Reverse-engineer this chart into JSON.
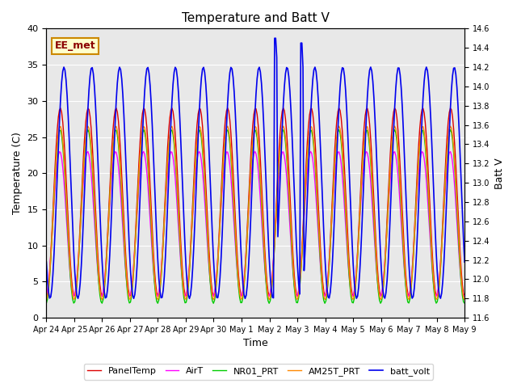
{
  "title": "Temperature and Batt V",
  "xlabel": "Time",
  "ylabel_left": "Temperature (C)",
  "ylabel_right": "Batt V",
  "annotation": "EE_met",
  "ylim_left": [
    0,
    40
  ],
  "ylim_right": [
    11.6,
    14.6
  ],
  "background_color": "#ffffff",
  "plot_bg_color": "#e8e8e8",
  "legend": [
    "PanelTemp",
    "AirT",
    "NR01_PRT",
    "AM25T_PRT",
    "batt_volt"
  ],
  "legend_colors": [
    "#dd0000",
    "#ff00ff",
    "#00cc00",
    "#ff8800",
    "#0000ee"
  ],
  "num_points": 384,
  "date_labels": [
    "Apr 24",
    "Apr 25",
    "Apr 26",
    "Apr 27",
    "Apr 28",
    "Apr 29",
    "Apr 30",
    "May 1",
    "May 2",
    "May 3",
    "May 4",
    "May 5",
    "May 6",
    "May 7",
    "May 8",
    "May 9"
  ],
  "xlim": [
    0,
    15
  ],
  "yticks_left": [
    0,
    5,
    10,
    15,
    20,
    25,
    30,
    35,
    40
  ],
  "yticks_right": [
    11.6,
    11.8,
    12.0,
    12.2,
    12.4,
    12.6,
    12.8,
    13.0,
    13.2,
    13.4,
    13.6,
    13.8,
    14.0,
    14.2,
    14.4,
    14.6
  ]
}
